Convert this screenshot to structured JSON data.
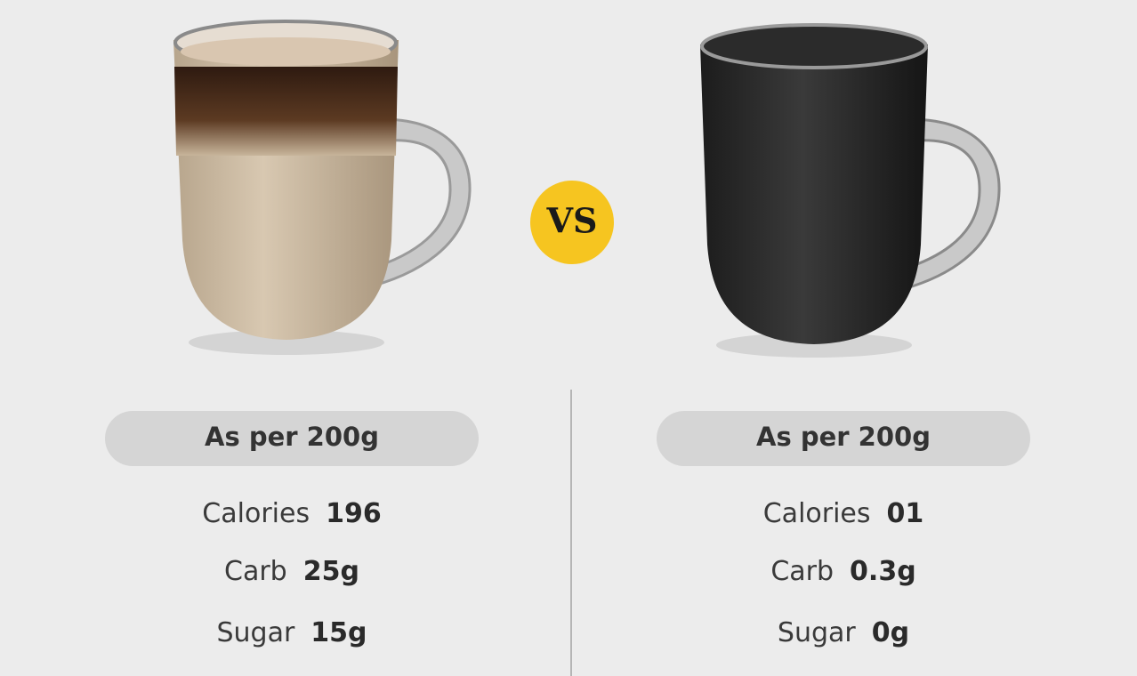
{
  "vs": "VS",
  "panels": [
    {
      "header": "As per 200g",
      "rows": [
        {
          "label": "Calories",
          "value": "196"
        },
        {
          "label": "Carb",
          "value": "25g"
        },
        {
          "label": "Sugar",
          "value": "15g"
        }
      ]
    },
    {
      "header": "As per 200g",
      "rows": [
        {
          "label": "Calories",
          "value": "01"
        },
        {
          "label": "Carb",
          "value": "0.3g"
        },
        {
          "label": "Sugar",
          "value": "0g"
        }
      ]
    }
  ]
}
